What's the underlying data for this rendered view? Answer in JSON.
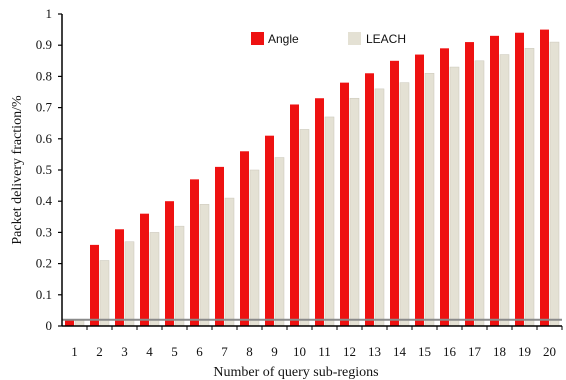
{
  "chart_data": {
    "type": "bar",
    "title": "",
    "xlabel": "Number of query sub-regions",
    "ylabel": "Packet delivery fraction/%",
    "ylim": [
      0,
      1
    ],
    "yticks": [
      0,
      0.1,
      0.2,
      0.3,
      0.4,
      0.5,
      0.6,
      0.7,
      0.8,
      0.9,
      1
    ],
    "ytick_labels": [
      "0",
      "0.1",
      "0.2",
      "0.3",
      "0.4",
      "0.5",
      "0.6",
      "0.7",
      "0.8",
      "0.9",
      "1"
    ],
    "categories": [
      "1",
      "2",
      "3",
      "4",
      "5",
      "6",
      "7",
      "8",
      "9",
      "10",
      "11",
      "12",
      "13",
      "14",
      "15",
      "16",
      "17",
      "18",
      "19",
      "20"
    ],
    "series": [
      {
        "name": "Angle",
        "color": "#ee1111",
        "values": [
          0.02,
          0.26,
          0.31,
          0.36,
          0.4,
          0.47,
          0.51,
          0.56,
          0.61,
          0.71,
          0.73,
          0.78,
          0.81,
          0.85,
          0.87,
          0.89,
          0.91,
          0.93,
          0.94,
          0.95
        ]
      },
      {
        "name": "LEACH",
        "color": "#e4e1d4",
        "values": [
          0.02,
          0.21,
          0.27,
          0.3,
          0.32,
          0.39,
          0.41,
          0.5,
          0.54,
          0.63,
          0.67,
          0.73,
          0.76,
          0.78,
          0.81,
          0.83,
          0.85,
          0.87,
          0.89,
          0.91
        ]
      }
    ],
    "baseline_value": 0.02,
    "grid": false,
    "legend_position": "top-right"
  }
}
